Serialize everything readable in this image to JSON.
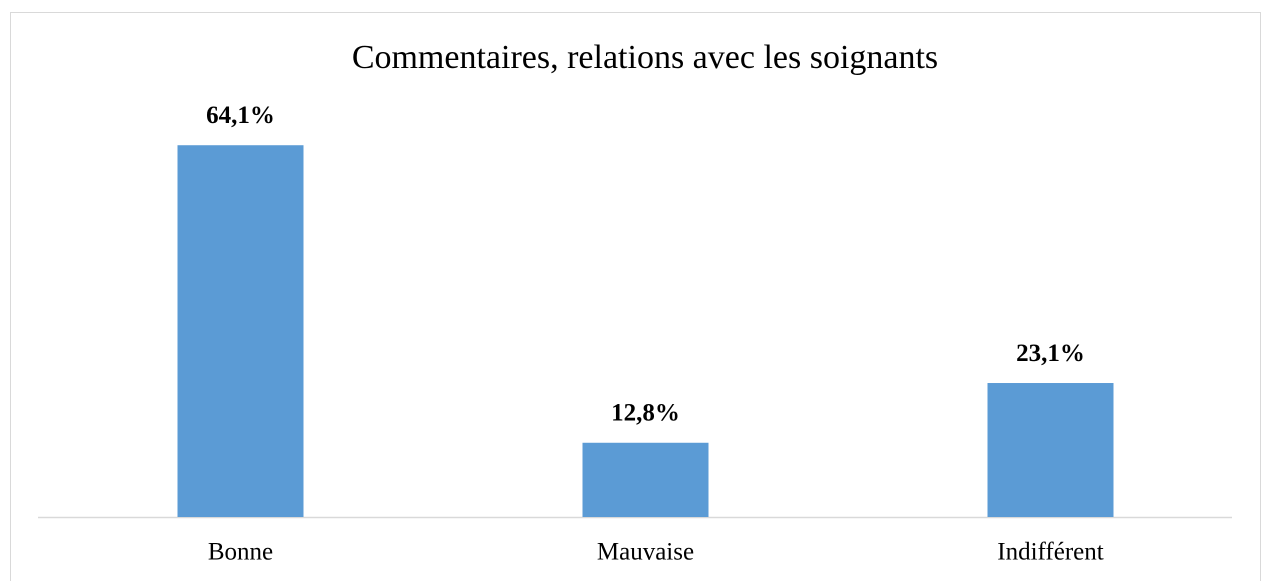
{
  "chart_data": {
    "type": "bar",
    "title": "Commentaires, relations avec les soignants",
    "categories": [
      "Bonne",
      "Mauvaise",
      "Indifférent"
    ],
    "values": [
      64.1,
      12.8,
      23.1
    ],
    "value_labels": [
      "64,1%",
      "12,8%",
      "23,1%"
    ],
    "color": "#5b9bd5",
    "ylim": [
      0,
      70
    ]
  }
}
